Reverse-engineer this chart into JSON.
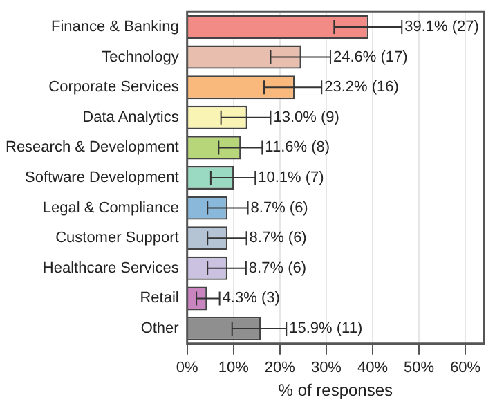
{
  "chart_data": {
    "type": "bar",
    "orientation": "horizontal",
    "xlabel": "% of responses",
    "categories": [
      "Finance & Banking",
      "Technology",
      "Corporate Services",
      "Data Analytics",
      "Research & Development",
      "Software Development",
      "Legal & Compliance",
      "Customer Support",
      "Healthcare Services",
      "Retail",
      "Other"
    ],
    "values": [
      39.1,
      24.6,
      23.2,
      13.0,
      11.6,
      10.1,
      8.7,
      8.7,
      8.7,
      4.3,
      15.9
    ],
    "colors": [
      "#f28b86",
      "#e8bfae",
      "#f9b87c",
      "#f9f3b4",
      "#b7d67a",
      "#9ad9c2",
      "#8ab8db",
      "#b4c4d4",
      "#cbc2e2",
      "#c985c0",
      "#8f8f8f"
    ],
    "errors": [
      [
        31.7,
        46.3
      ],
      [
        18.0,
        30.9
      ],
      [
        16.6,
        29.0
      ],
      [
        7.3,
        18.0
      ],
      [
        6.8,
        16.2
      ],
      [
        5.1,
        14.7
      ],
      [
        4.4,
        13.1
      ],
      [
        4.4,
        12.8
      ],
      [
        4.4,
        12.7
      ],
      [
        2.0,
        7.0
      ],
      [
        9.7,
        21.4
      ]
    ],
    "value_labels": [
      "39.1% (27)",
      "24.6% (17)",
      "23.2% (16)",
      "13.0% (9)",
      "11.6% (8)",
      "10.1% (7)",
      "8.7% (6)",
      "8.7% (6)",
      "8.7% (6)",
      "4.3% (3)",
      "15.9% (11)"
    ],
    "xlim": [
      0,
      64
    ],
    "xticks": [
      {
        "value": 0,
        "label": "0%"
      },
      {
        "value": 10,
        "label": "10%"
      },
      {
        "value": 20,
        "label": "20%"
      },
      {
        "value": 30,
        "label": "30%"
      },
      {
        "value": 40,
        "label": "40%"
      },
      {
        "value": 50,
        "label": "50%"
      },
      {
        "value": 60,
        "label": "60%"
      }
    ],
    "grid": "x",
    "legend": false
  }
}
